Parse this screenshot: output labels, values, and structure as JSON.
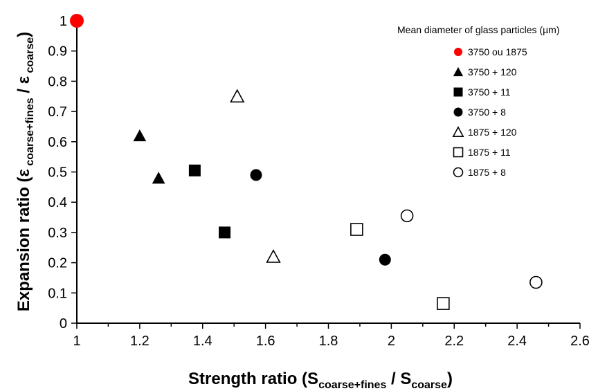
{
  "chart_data": {
    "type": "scatter",
    "xlabel": {
      "main": "Strength ratio (S",
      "sub1": "coarse+fines",
      "mid": " / S",
      "sub2": "coarse",
      "end": ")"
    },
    "ylabel": {
      "main": "Expansion ratio (ε",
      "sub1": " coarse+fines",
      "mid": " / ε",
      "sub2": " coarse",
      "end": ")"
    },
    "xlim": [
      1,
      2.6
    ],
    "ylim": [
      0,
      1
    ],
    "x_ticks": [
      1,
      1.2,
      1.4,
      1.6,
      1.8,
      2,
      2.2,
      2.4,
      2.6
    ],
    "x_tick_labels": [
      "1",
      "1.2",
      "1.4",
      "1.6",
      "1.8",
      "2",
      "2.2",
      "2.4",
      "2.6"
    ],
    "y_ticks": [
      0,
      0.1,
      0.2,
      0.3,
      0.4,
      0.5,
      0.6,
      0.7,
      0.8,
      0.9,
      1
    ],
    "y_tick_labels": [
      "0",
      "0.1",
      "0.2",
      "0.3",
      "0.4",
      "0.5",
      "0.6",
      "0.7",
      "0.8",
      "0.9",
      "1"
    ],
    "grid": false,
    "legend_title": "Mean diameter of glass particles (µm)",
    "legend_position": "top-right",
    "series": [
      {
        "name": "3750 ou 1875",
        "marker": "circle",
        "filled": true,
        "color": "#ff0000",
        "points": [
          [
            1.0,
            1.0
          ]
        ]
      },
      {
        "name": "3750 + 120",
        "marker": "triangle",
        "filled": true,
        "color": "#000000",
        "points": [
          [
            1.2,
            0.62
          ],
          [
            1.26,
            0.48
          ]
        ]
      },
      {
        "name": "3750 + 11",
        "marker": "square",
        "filled": true,
        "color": "#000000",
        "points": [
          [
            1.375,
            0.505
          ],
          [
            1.47,
            0.3
          ]
        ]
      },
      {
        "name": "3750 + 8",
        "marker": "circle",
        "filled": true,
        "color": "#000000",
        "points": [
          [
            1.57,
            0.49
          ],
          [
            1.98,
            0.21
          ]
        ]
      },
      {
        "name": "1875 + 120",
        "marker": "triangle",
        "filled": false,
        "color": "#000000",
        "points": [
          [
            1.51,
            0.75
          ],
          [
            1.625,
            0.22
          ]
        ]
      },
      {
        "name": "1875 + 11",
        "marker": "square",
        "filled": false,
        "color": "#000000",
        "points": [
          [
            1.89,
            0.31
          ],
          [
            2.165,
            0.065
          ]
        ]
      },
      {
        "name": "1875 + 8",
        "marker": "circle",
        "filled": false,
        "color": "#000000",
        "points": [
          [
            2.05,
            0.355
          ],
          [
            2.46,
            0.135
          ]
        ]
      }
    ]
  }
}
